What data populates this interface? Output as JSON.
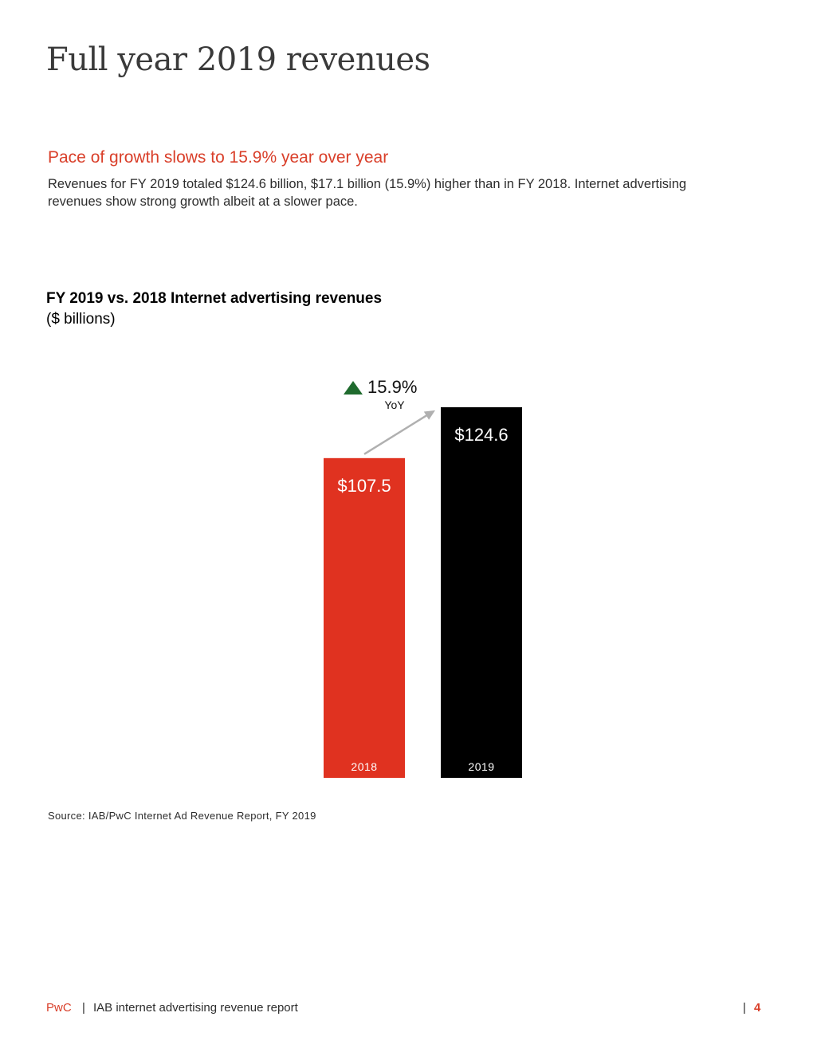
{
  "page": {
    "title": "Full year 2019 revenues"
  },
  "section": {
    "heading": "Pace of growth slows to 15.9% year over year",
    "body": "Revenues for FY 2019 totaled $124.6 billion, $17.1 billion (15.9%) higher than in FY 2018. Internet advertising revenues show strong growth albeit at a slower pace."
  },
  "chart_data": {
    "type": "bar",
    "title": "FY 2019 vs. 2018 Internet advertising revenues",
    "subtitle": "($ billions)",
    "categories": [
      "2018",
      "2019"
    ],
    "values": [
      107.5,
      124.6
    ],
    "value_labels": [
      "$107.5",
      "$124.6"
    ],
    "colors": [
      "#e03220",
      "#000000"
    ],
    "annotation": {
      "value": "15.9%",
      "label": "YoY",
      "arrow_color": "#b0b0b0",
      "triangle_color": "#1f6b2e"
    },
    "xlabel": "",
    "ylabel": "",
    "ylim": [
      0,
      124.6
    ],
    "grid": false,
    "legend": "none"
  },
  "source": "Source: IAB/PwC Internet Ad Revenue Report, FY 2019",
  "footer": {
    "brand": "PwC",
    "separator": "|",
    "report": "IAB internet advertising revenue report",
    "page_separator": "|",
    "page_number": "4"
  }
}
